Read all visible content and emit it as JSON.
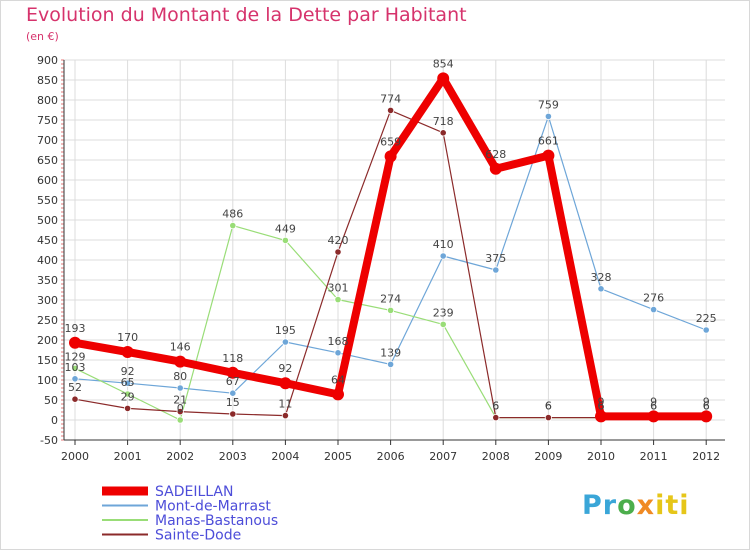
{
  "header": {
    "title": "Evolution du Montant de la Dette par Habitant",
    "subtitle": "(en €)"
  },
  "logo": {
    "parts": [
      "Pr",
      "o",
      "x",
      "iti"
    ]
  },
  "colors": {
    "grid": "#dcdcdc",
    "axis": "#333333",
    "title": "#d6336c",
    "legend_text": "#4d4dd9"
  },
  "chart_data": {
    "type": "line",
    "title": "Evolution du Montant de la Dette par Habitant",
    "subtitle": "(en €)",
    "xlabel": "",
    "ylabel": "",
    "categories": [
      "2000",
      "2001",
      "2002",
      "2003",
      "2004",
      "2005",
      "2006",
      "2007",
      "2008",
      "2009",
      "2010",
      "2011",
      "2012"
    ],
    "ylim": [
      -50,
      900
    ],
    "yticks": [
      -50,
      0,
      50,
      100,
      150,
      200,
      250,
      300,
      350,
      400,
      450,
      500,
      550,
      600,
      650,
      700,
      750,
      800,
      850,
      900
    ],
    "grid": true,
    "legend_position": "bottom-left",
    "series": [
      {
        "name": "SADEILLAN",
        "color": "#ee0000",
        "width": 8,
        "values": [
          193,
          170,
          146,
          118,
          92,
          64,
          659,
          854,
          628,
          661,
          9,
          9,
          9
        ],
        "labels": [
          "193",
          "170",
          "146",
          "118",
          "92",
          "64",
          "659",
          "854",
          "628",
          "661",
          "9",
          "9",
          "9"
        ]
      },
      {
        "name": "Mont-de-Marrast",
        "color": "#6ea6d8",
        "width": 1.2,
        "values": [
          103,
          92,
          80,
          67,
          195,
          168,
          139,
          410,
          375,
          759,
          328,
          276,
          225
        ],
        "labels": [
          "103",
          "92",
          "80",
          "67",
          "195",
          "168",
          "139",
          "410",
          "375",
          "759",
          "328",
          "276",
          "225"
        ]
      },
      {
        "name": "Manas-Bastanous",
        "color": "#99dd77",
        "width": 1.2,
        "values": [
          129,
          65,
          0,
          486,
          449,
          301,
          274,
          239,
          6,
          6,
          6,
          6,
          6
        ],
        "labels": [
          "129",
          "65",
          "0",
          "486",
          "449",
          "301",
          "274",
          "239",
          "6",
          "6",
          "6",
          "6",
          "6"
        ]
      },
      {
        "name": "Sainte-Dode",
        "color": "#8b2a2a",
        "width": 1.2,
        "values": [
          52,
          29,
          21,
          15,
          11,
          420,
          774,
          718,
          6,
          6,
          6,
          6,
          6
        ],
        "labels": [
          "52",
          "29",
          "21",
          "15",
          "11",
          "420",
          "774",
          "718",
          "6",
          "6",
          "6",
          "6",
          "6"
        ]
      }
    ]
  }
}
